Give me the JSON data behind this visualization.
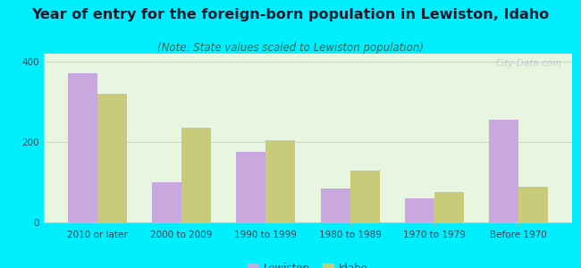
{
  "title": "Year of entry for the foreign-born population in Lewiston, Idaho",
  "subtitle": "(Note: State values scaled to Lewiston population)",
  "categories": [
    "2010 or later",
    "2000 to 2009",
    "1990 to 1999",
    "1980 to 1989",
    "1970 to 1979",
    "Before 1970"
  ],
  "lewiston_values": [
    370,
    100,
    175,
    85,
    60,
    255
  ],
  "idaho_values": [
    320,
    235,
    205,
    130,
    75,
    90
  ],
  "lewiston_color": "#c9a8e0",
  "idaho_color": "#c8cc7a",
  "background_outer": "#00eeff",
  "background_inner": "#e8f5e0",
  "ylim": [
    0,
    420
  ],
  "yticks": [
    0,
    200,
    400
  ],
  "bar_width": 0.35,
  "title_fontsize": 11.5,
  "subtitle_fontsize": 8.5,
  "tick_fontsize": 7.5,
  "legend_fontsize": 8.5,
  "watermark": "City-Data.com"
}
